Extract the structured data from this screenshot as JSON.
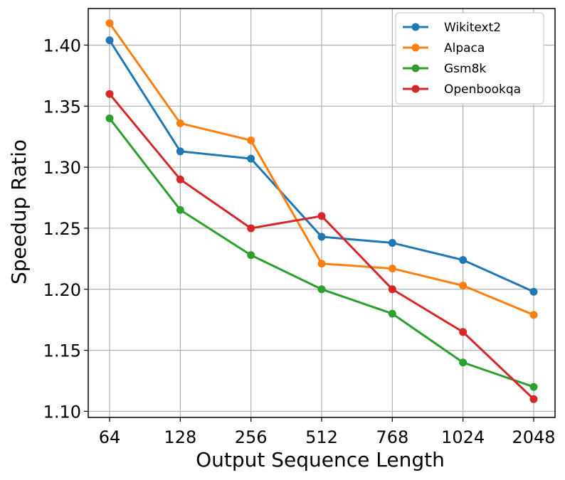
{
  "chart_data": {
    "type": "line",
    "title": "",
    "xlabel": "Output Sequence Length",
    "ylabel": "Speedup Ratio",
    "categories": [
      "64",
      "128",
      "256",
      "512",
      "768",
      "1024",
      "2048"
    ],
    "ylim": [
      1.095,
      1.43
    ],
    "yticks": [
      1.1,
      1.15,
      1.2,
      1.25,
      1.3,
      1.35,
      1.4
    ],
    "ytick_labels": [
      "1.10",
      "1.15",
      "1.20",
      "1.25",
      "1.30",
      "1.35",
      "1.40"
    ],
    "grid": true,
    "legend_position": "top-right",
    "series": [
      {
        "name": "Wikitext2",
        "color": "#1f77b4",
        "values": [
          1.404,
          1.313,
          1.307,
          1.243,
          1.238,
          1.224,
          1.198
        ]
      },
      {
        "name": "Alpaca",
        "color": "#ff7f0e",
        "values": [
          1.418,
          1.336,
          1.322,
          1.221,
          1.217,
          1.203,
          1.179
        ]
      },
      {
        "name": "Gsm8k",
        "color": "#2ca02c",
        "values": [
          1.34,
          1.265,
          1.228,
          1.2,
          1.18,
          1.14,
          1.12
        ]
      },
      {
        "name": "Openbookqa",
        "color": "#d62728",
        "values": [
          1.36,
          1.29,
          1.25,
          1.26,
          1.2,
          1.165,
          1.11
        ]
      }
    ]
  }
}
